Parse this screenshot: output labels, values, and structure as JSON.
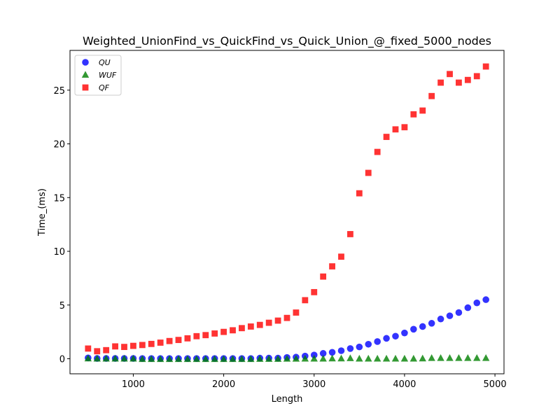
{
  "chart_data": {
    "type": "scatter",
    "title": "Weighted_UnionFind_vs_QuickFind_vs_Quick_Union_@_fixed_5000_nodes",
    "xlabel": "Length",
    "ylabel": "Time_(ms)",
    "xlim": [
      300,
      5100
    ],
    "ylim": [
      -1.4,
      28.7
    ],
    "x_ticks": [
      1000,
      2000,
      3000,
      4000,
      5000
    ],
    "y_ticks": [
      0,
      5,
      10,
      15,
      20,
      25
    ],
    "grid": false,
    "legend_position": "upper-left",
    "x": [
      500,
      600,
      700,
      800,
      900,
      1000,
      1100,
      1200,
      1300,
      1400,
      1500,
      1600,
      1700,
      1800,
      1900,
      2000,
      2100,
      2200,
      2300,
      2400,
      2500,
      2600,
      2700,
      2800,
      2900,
      3000,
      3100,
      3200,
      3300,
      3400,
      3500,
      3600,
      3700,
      3800,
      3900,
      4000,
      4100,
      4200,
      4300,
      4400,
      4500,
      4600,
      4700,
      4800,
      4900
    ],
    "series": [
      {
        "name": "QU",
        "marker": "circle",
        "color": "#0000ff",
        "values": [
          0.08,
          0.03,
          0.03,
          0.03,
          0.03,
          0.03,
          0.02,
          0.02,
          0.02,
          0.02,
          0.02,
          0.02,
          0.02,
          0.02,
          0.02,
          0.02,
          0.02,
          0.02,
          0.02,
          0.06,
          0.06,
          0.06,
          0.12,
          0.15,
          0.25,
          0.35,
          0.5,
          0.6,
          0.75,
          0.95,
          1.1,
          1.35,
          1.6,
          1.9,
          2.1,
          2.4,
          2.75,
          3.0,
          3.3,
          3.7,
          4.0,
          4.3,
          4.75,
          5.2,
          5.5
        ]
      },
      {
        "name": "WUF",
        "marker": "triangle",
        "color": "#008000",
        "values": [
          0.02,
          0.0,
          0.0,
          0.0,
          0.0,
          0.0,
          -0.04,
          -0.04,
          -0.04,
          -0.04,
          -0.04,
          -0.04,
          -0.04,
          -0.04,
          -0.04,
          -0.04,
          -0.04,
          -0.04,
          -0.04,
          -0.02,
          -0.02,
          -0.02,
          -0.01,
          -0.01,
          0.0,
          0.0,
          0.0,
          0.02,
          0.02,
          0.04,
          0.0,
          0.0,
          0.0,
          0.0,
          0.0,
          0.0,
          0.0,
          0.02,
          0.06,
          0.06,
          0.06,
          0.06,
          0.06,
          0.06,
          0.06
        ]
      },
      {
        "name": "QF",
        "marker": "square",
        "color": "#ff0000",
        "values": [
          0.95,
          0.7,
          0.8,
          1.15,
          1.1,
          1.2,
          1.28,
          1.38,
          1.5,
          1.65,
          1.75,
          1.9,
          2.1,
          2.2,
          2.35,
          2.5,
          2.65,
          2.85,
          3.0,
          3.15,
          3.35,
          3.55,
          3.8,
          4.3,
          5.45,
          6.2,
          7.65,
          8.6,
          9.5,
          11.6,
          15.4,
          17.3,
          19.25,
          20.65,
          21.35,
          21.55,
          22.75,
          23.1,
          24.45,
          25.7,
          26.5,
          25.7,
          25.95,
          26.3,
          27.2
        ]
      }
    ]
  }
}
